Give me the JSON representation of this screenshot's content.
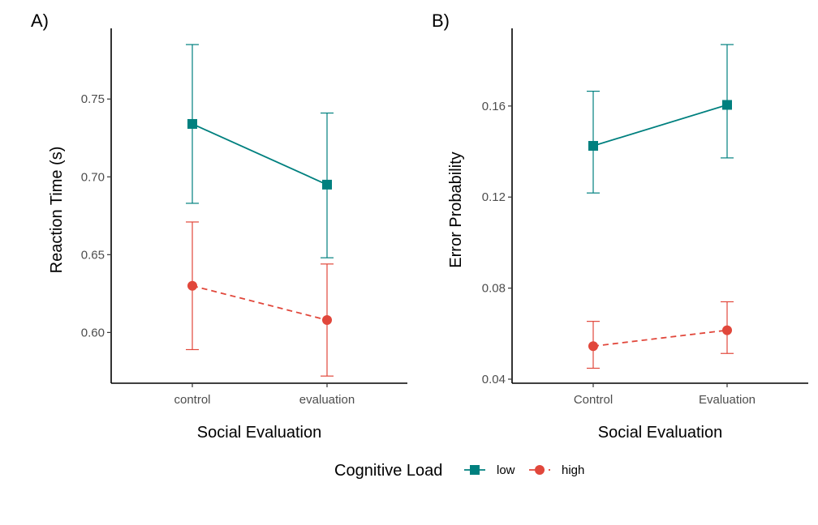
{
  "legend": {
    "title": "Cognitive Load",
    "position": "bottom",
    "entries": [
      {
        "label": "low",
        "color": "#00807f",
        "shape": "square",
        "linetype": "solid"
      },
      {
        "label": "high",
        "color": "#e1473b",
        "shape": "circle",
        "linetype": "dashed"
      }
    ]
  },
  "chart_data": [
    {
      "type": "line",
      "panel_tag": "A)",
      "xlabel": "Social Evaluation",
      "ylabel": "Reaction Time (s)",
      "categories": [
        "control",
        "evaluation"
      ],
      "ylim": [
        0.57,
        0.785
      ],
      "yticks": [
        0.6,
        0.65,
        0.7,
        0.75
      ],
      "ytick_labels": [
        "0.60",
        "0.65",
        "0.70",
        "0.75"
      ],
      "grid": false,
      "series": [
        {
          "name": "low",
          "color": "#00807f",
          "marker": "square",
          "linetype": "solid",
          "values": [
            0.734,
            0.695
          ],
          "lower": [
            0.683,
            0.648
          ],
          "upper": [
            0.785,
            0.741
          ]
        },
        {
          "name": "high",
          "color": "#e1473b",
          "marker": "circle",
          "linetype": "dashed",
          "values": [
            0.63,
            0.608
          ],
          "lower": [
            0.589,
            0.572
          ],
          "upper": [
            0.671,
            0.644
          ]
        }
      ]
    },
    {
      "type": "line",
      "panel_tag": "B)",
      "xlabel": "Social Evaluation",
      "ylabel": "Error Probability",
      "categories": [
        "Control",
        "Evaluation"
      ],
      "ylim": [
        0.04,
        0.187
      ],
      "yticks": [
        0.04,
        0.08,
        0.12,
        0.16
      ],
      "ytick_labels": [
        "0.04",
        "0.08",
        "0.12",
        "0.16"
      ],
      "grid": false,
      "series": [
        {
          "name": "low",
          "color": "#00807f",
          "marker": "square",
          "linetype": "solid",
          "values": [
            0.1425,
            0.1605
          ],
          "lower": [
            0.1218,
            0.1372
          ],
          "upper": [
            0.1665,
            0.187
          ]
        },
        {
          "name": "high",
          "color": "#e1473b",
          "marker": "circle",
          "linetype": "dashed",
          "values": [
            0.0545,
            0.0615
          ],
          "lower": [
            0.0448,
            0.0513
          ],
          "upper": [
            0.0654,
            0.074
          ]
        }
      ]
    }
  ]
}
